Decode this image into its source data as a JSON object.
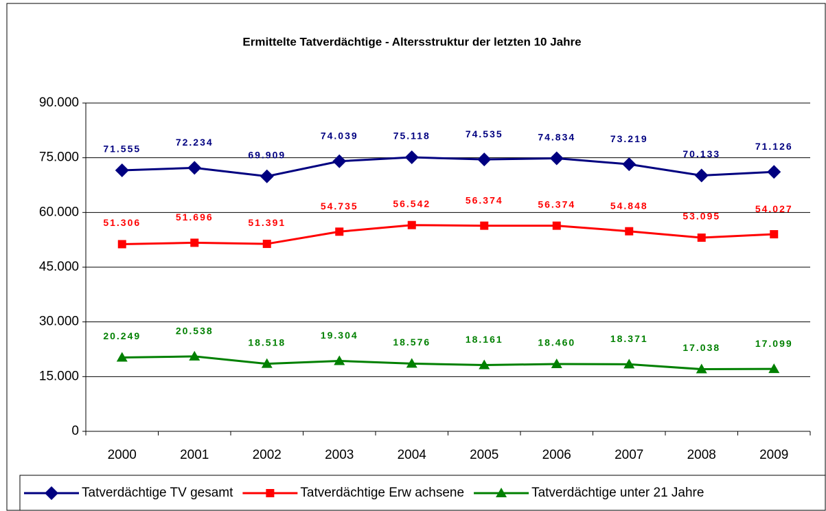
{
  "chart_data": {
    "type": "line",
    "title": "Ermittelte Tatverdächtige - Altersstruktur der letzten 10 Jahre",
    "categories": [
      "2000",
      "2001",
      "2002",
      "2003",
      "2004",
      "2005",
      "2006",
      "2007",
      "2008",
      "2009"
    ],
    "series": [
      {
        "name": "Tatverdächtige TV gesamt",
        "color": "#000080",
        "marker": "diamond",
        "values": [
          71555,
          72234,
          69909,
          74039,
          75118,
          74535,
          74834,
          73219,
          70133,
          71126
        ],
        "value_labels": [
          "71.555",
          "72.234",
          "69.909",
          "74.039",
          "75.118",
          "74.535",
          "74.834",
          "73.219",
          "70.133",
          "71.126"
        ]
      },
      {
        "name": "Tatverdächtige Erw achsene",
        "color": "#ff0000",
        "marker": "square",
        "values": [
          51306,
          51696,
          51391,
          54735,
          56542,
          56374,
          56374,
          54848,
          53095,
          54027
        ],
        "value_labels": [
          "51.306",
          "51.696",
          "51.391",
          "54.735",
          "56.542",
          "56.374",
          "56.374",
          "54.848",
          "53.095",
          "54.027"
        ]
      },
      {
        "name": "Tatverdächtige unter 21 Jahre",
        "color": "#008000",
        "marker": "triangle",
        "values": [
          20249,
          20538,
          18518,
          19304,
          18576,
          18161,
          18460,
          18371,
          17038,
          17099
        ],
        "value_labels": [
          "20.249",
          "20.538",
          "18.518",
          "19.304",
          "18.576",
          "18.161",
          "18.460",
          "18.371",
          "17.038",
          "17.099"
        ]
      }
    ],
    "ylim": [
      0,
      90000
    ],
    "yticks": [
      0,
      {
        "value": 15000,
        "label": "15.000"
      },
      {
        "value": 30000,
        "label": "30.000"
      },
      {
        "value": 45000,
        "label": "45.000"
      },
      {
        "value": 60000,
        "label": "60.000"
      },
      {
        "value": 75000,
        "label": "75.000"
      },
      {
        "value": 90000,
        "label": "90.000"
      }
    ],
    "grid": true,
    "legend": "bottom"
  }
}
